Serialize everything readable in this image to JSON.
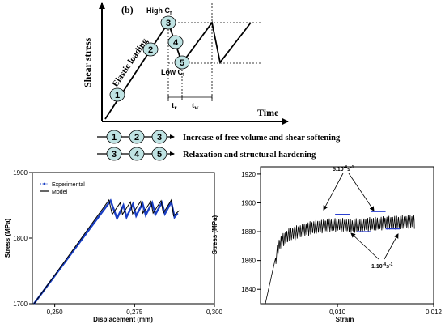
{
  "panel_b": {
    "label": "(b)",
    "ylabel": "Shear stress",
    "xlabel": "Time",
    "elastic_label": "Elastic loading",
    "high_label": "High C",
    "high_sub": "f",
    "low_label": "Low C",
    "low_sub": "f",
    "tr_label": "t",
    "tr_sub": "r",
    "tw_label": "t",
    "tw_sub": "w",
    "points": [
      "1",
      "2",
      "3",
      "4",
      "5"
    ],
    "legend": [
      {
        "seq": [
          "1",
          "2",
          "3"
        ],
        "text": "Increase of free volume and shear softening"
      },
      {
        "seq": [
          "3",
          "4",
          "5"
        ],
        "text": "Relaxation and structural hardening"
      }
    ],
    "bubble_fill": "#bfe3e3"
  },
  "chart_data": [
    {
      "type": "line",
      "xlabel": "Displacement (mm)",
      "ylabel": "Stress (MPa)",
      "xticks": [
        "0,250",
        "0,275",
        "0,300"
      ],
      "yticks": [
        "1700",
        "1800",
        "1900"
      ],
      "xlim": [
        0.243,
        0.3
      ],
      "ylim": [
        1700,
        1900
      ],
      "legend_position": "top-left",
      "series": [
        {
          "name": "Experimental",
          "color": "#1a3fc4",
          "points": [
            [
              0.2435,
              1700
            ],
            [
              0.2675,
              1857
            ],
            [
              0.2695,
              1830
            ],
            [
              0.2715,
              1850
            ],
            [
              0.2725,
              1832
            ],
            [
              0.2745,
              1852
            ],
            [
              0.2755,
              1834
            ],
            [
              0.2775,
              1853
            ],
            [
              0.2785,
              1835
            ],
            [
              0.2805,
              1854
            ],
            [
              0.2815,
              1836
            ],
            [
              0.2835,
              1854
            ],
            [
              0.2845,
              1837
            ],
            [
              0.2865,
              1855
            ],
            [
              0.2875,
              1832
            ],
            [
              0.2885,
              1838
            ]
          ]
        },
        {
          "name": "Model",
          "color": "#000000",
          "points": [
            [
              0.2435,
              1700
            ],
            [
              0.267,
              1858
            ],
            [
              0.268,
              1836
            ],
            [
              0.2705,
              1854
            ],
            [
              0.2712,
              1836
            ],
            [
              0.2737,
              1855
            ],
            [
              0.2744,
              1837
            ],
            [
              0.2769,
              1856
            ],
            [
              0.2776,
              1838
            ],
            [
              0.2801,
              1856
            ],
            [
              0.2808,
              1838
            ],
            [
              0.2833,
              1857
            ],
            [
              0.284,
              1838
            ],
            [
              0.2865,
              1858
            ],
            [
              0.2872,
              1834
            ],
            [
              0.289,
              1842
            ]
          ]
        }
      ]
    },
    {
      "type": "line",
      "xlabel": "Strain",
      "ylabel": "Stress (MPa)",
      "xticks": [
        "0,010",
        "0,012"
      ],
      "yticks": [
        "1840",
        "1860",
        "1880",
        "1900",
        "1920"
      ],
      "xlim": [
        0.0084,
        0.012
      ],
      "ylim": [
        1830,
        1925
      ],
      "annotations": [
        {
          "text": "5.10",
          "sup": "-4",
          "unit": "s",
          "usup": "-1",
          "position": "top",
          "rate_level": "high"
        },
        {
          "text": "1.10",
          "sup": "-4",
          "unit": "s",
          "usup": "-1",
          "position": "bottom",
          "rate_level": "low"
        }
      ],
      "plateau_bars": [
        {
          "x0": 0.00995,
          "x1": 0.01025,
          "y": 1892,
          "rate": "5.10^-4 s^-1"
        },
        {
          "x0": 0.0107,
          "x1": 0.011,
          "y": 1894,
          "rate": "5.10^-4 s^-1"
        },
        {
          "x0": 0.0104,
          "x1": 0.0107,
          "y": 1880,
          "rate": "1.10^-4 s^-1"
        },
        {
          "x0": 0.011,
          "x1": 0.0113,
          "y": 1882,
          "rate": "1.10^-4 s^-1"
        }
      ],
      "series": [
        {
          "color": "#000000",
          "base": [
            [
              0.0085,
              1830
            ],
            [
              0.0087,
              1860
            ],
            [
              0.0088,
              1872
            ],
            [
              0.009,
              1878
            ],
            [
              0.0095,
              1883
            ],
            [
              0.01,
              1885
            ],
            [
              0.0103,
              1884
            ],
            [
              0.0106,
              1885
            ],
            [
              0.011,
              1886
            ],
            [
              0.0116,
              1887
            ]
          ],
          "oscillation_amplitude": 5,
          "oscillation_period": 4e-05
        }
      ]
    }
  ]
}
